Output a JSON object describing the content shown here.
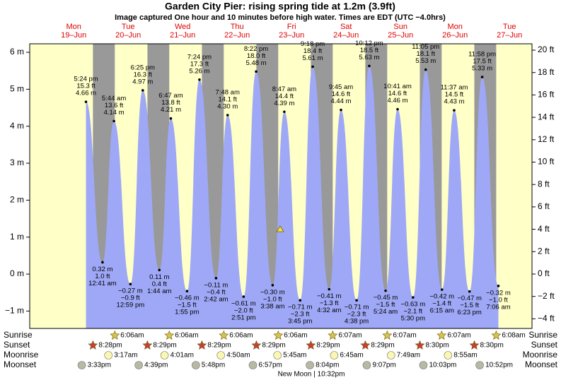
{
  "chart_data": {
    "type": "tide",
    "title": "Garden City Pier: rising  spring tide at 1.2m (3.9ft)",
    "subtitle": "Image captured One hour and 10 minutes before high water. Times are EDT (UTC −4.0hrs)",
    "days": [
      {
        "name": "Mon",
        "date": "19–Jun"
      },
      {
        "name": "Tue",
        "date": "20–Jun"
      },
      {
        "name": "Wed",
        "date": "21–Jun"
      },
      {
        "name": "Thu",
        "date": "22–Jun"
      },
      {
        "name": "Fri",
        "date": "23–Jun"
      },
      {
        "name": "Sat",
        "date": "24–Jun"
      },
      {
        "name": "Sun",
        "date": "25–Jun"
      },
      {
        "name": "Mon",
        "date": "26–Jun"
      },
      {
        "name": "Tue",
        "date": "27–Jun"
      }
    ],
    "ylim": [
      -1.47,
      6.23
    ],
    "yticks": [
      {
        "value": 6,
        "label": "6 m"
      },
      {
        "value": 5,
        "label": "5 m"
      },
      {
        "value": 4,
        "label": "4 m"
      },
      {
        "value": 3,
        "label": "3 m"
      },
      {
        "value": 2,
        "label": "2 m"
      },
      {
        "value": 1,
        "label": "1 m"
      },
      {
        "value": 0,
        "label": "0 m"
      },
      {
        "value": -1,
        "label": "−1 m"
      }
    ],
    "y2lim": [
      -4.86,
      20.57
    ],
    "y2ticks": [
      {
        "value": 20,
        "label": "20 ft"
      },
      {
        "value": 18,
        "label": "18 ft"
      },
      {
        "value": 16,
        "label": "16 ft"
      },
      {
        "value": 14,
        "label": "14 ft"
      },
      {
        "value": 12,
        "label": "12 ft"
      },
      {
        "value": 10,
        "label": "10 ft"
      },
      {
        "value": 8,
        "label": "8 ft"
      },
      {
        "value": 6,
        "label": "6 ft"
      },
      {
        "value": 4,
        "label": "4 ft"
      },
      {
        "value": 2,
        "label": "2 ft"
      },
      {
        "value": 0,
        "label": "0 ft"
      },
      {
        "value": -2,
        "label": "−2 ft"
      },
      {
        "value": -4,
        "label": "−4 ft"
      }
    ],
    "colors": {
      "day": "#ffffc8",
      "night": "#999999",
      "tide": "#9ea8f6",
      "header": "#e00000"
    },
    "tides": {
      "times": [
        "5:24 pm",
        "12:41 am",
        "5:44 am",
        "12:59 pm",
        "6:25 pm",
        "1:44 am",
        "6:47 am",
        "1:55 pm",
        "7:24 pm",
        "2:42 am",
        "7:48 am",
        "2:51 pm",
        "8:22 pm",
        "3:38 am",
        "8:47 am",
        "3:45 pm",
        "9:18 pm",
        "4:32 am",
        "9:45 am",
        "4:38 pm",
        "10:12 pm",
        "5:24 am",
        "10:41 am",
        "5:30 pm",
        "11:05 pm",
        "6:15 am",
        "11:37 am",
        "6:23 pm",
        "11:58 pm",
        "7:06 am"
      ],
      "m": [
        4.66,
        0.32,
        4.14,
        -0.27,
        4.97,
        0.11,
        4.21,
        -0.46,
        5.26,
        -0.11,
        4.3,
        -0.61,
        5.48,
        -0.3,
        4.39,
        -0.71,
        5.61,
        -0.41,
        4.44,
        -0.71,
        5.63,
        -0.45,
        4.46,
        -0.63,
        5.53,
        -0.42,
        4.43,
        -0.47,
        5.33,
        -0.32
      ],
      "m_labels": [
        "4.66 m",
        "0.32 m",
        "4.14 m",
        "−0.27 m",
        "4.97 m",
        "0.11 m",
        "4.21 m",
        "−0.46 m",
        "5.26 m",
        "−0.11 m",
        "4.30 m",
        "−0.61 m",
        "5.48 m",
        "−0.30 m",
        "4.39 m",
        "−0.71 m",
        "5.61 m",
        "−0.41 m",
        "4.44 m",
        "−0.71 m",
        "5.63 m",
        "−0.45 m",
        "4.46 m",
        "−0.63 m",
        "5.53 m",
        "−0.42 m",
        "4.43 m",
        "−0.47 m",
        "5.33 m",
        "−0.32 m"
      ],
      "ft": [
        15.3,
        1.0,
        13.6,
        -0.9,
        16.3,
        0.4,
        13.8,
        -1.5,
        17.3,
        -0.4,
        14.1,
        -2.0,
        18.0,
        -1.0,
        14.4,
        -2.3,
        18.4,
        -1.3,
        14.6,
        -2.3,
        18.5,
        -1.5,
        14.6,
        -2.1,
        18.1,
        -1.4,
        14.5,
        -1.5,
        17.5,
        -1.0
      ],
      "ft_labels": [
        "15.3 ft",
        "1.0 ft",
        "13.6 ft",
        "−0.9 ft",
        "16.3 ft",
        "0.4 ft",
        "13.8 ft",
        "−1.5 ft",
        "17.3 ft",
        "−0.4 ft",
        "14.1 ft",
        "−2.0 ft",
        "18.0 ft",
        "−1.0 ft",
        "14.4 ft",
        "−2.3 ft",
        "18.4 ft",
        "−1.3 ft",
        "14.6 ft",
        "−2.3 ft",
        "18.5 ft",
        "−1.5 ft",
        "14.6 ft",
        "−2.1 ft",
        "18.1 ft",
        "−1.4 ft",
        "14.5 ft",
        "−1.5 ft",
        "17.5 ft",
        "−1.0 ft"
      ]
    },
    "sunrise": {
      "label": "Sunrise",
      "icon": "star",
      "color": "#d8c545",
      "times": [
        null,
        "6:06am",
        "6:06am",
        "6:06am",
        "6:06am",
        "6:07am",
        "6:07am",
        "6:07am",
        "6:08am"
      ]
    },
    "sunset": {
      "label": "Sunset",
      "icon": "star",
      "color": "#c8402c",
      "times": [
        "8:28pm",
        "8:29pm",
        "8:29pm",
        "8:29pm",
        "8:29pm",
        "8:29pm",
        "8:30pm",
        "8:30pm",
        null
      ]
    },
    "moonrise": {
      "label": "Moonrise",
      "icon": "circle",
      "color": "#fbf6b0",
      "times": [
        null,
        "3:17am",
        "4:01am",
        "4:50am",
        "5:45am",
        "6:45am",
        "7:49am",
        "8:55am",
        null
      ]
    },
    "moonset": {
      "label": "Moonset",
      "icon": "circle",
      "color": "#b8b8a4",
      "times": [
        "3:33pm",
        "4:39pm",
        "5:48pm",
        "6:57pm",
        "8:04pm",
        "9:07pm",
        "10:03pm",
        "10:52pm",
        null
      ]
    },
    "moon_phase": "New Moon | 10:32pm"
  }
}
